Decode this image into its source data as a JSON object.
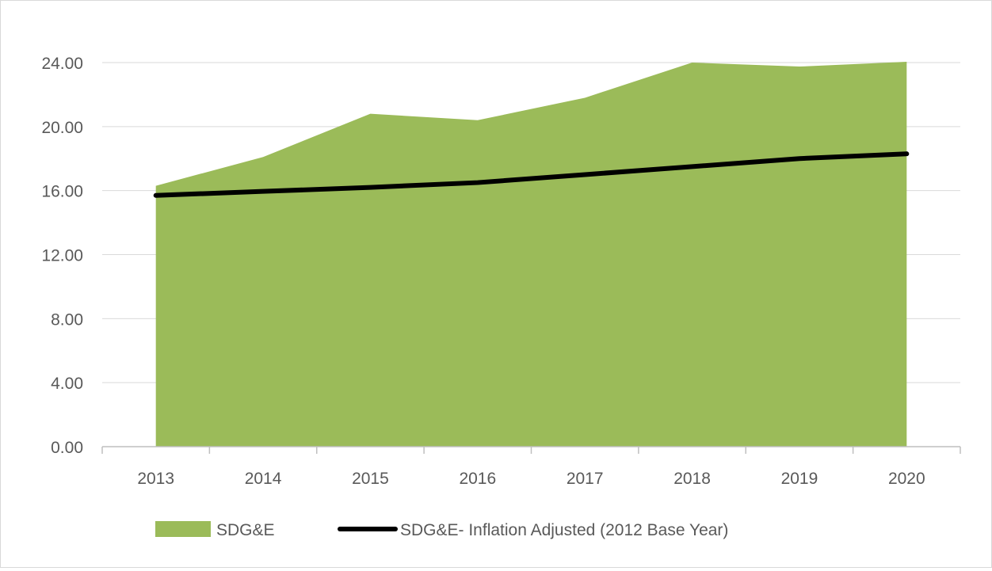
{
  "chart_data": {
    "type": "area",
    "title": "",
    "xlabel": "",
    "ylabel": "",
    "categories": [
      "2013",
      "2014",
      "2015",
      "2016",
      "2017",
      "2018",
      "2019",
      "2020"
    ],
    "ylim": [
      0,
      24
    ],
    "yticks": [
      "0.00",
      "4.00",
      "8.00",
      "12.00",
      "16.00",
      "20.00",
      "24.00"
    ],
    "grid": true,
    "legend_position": "bottom",
    "series": [
      {
        "name": "SDG&E",
        "type": "area",
        "color": "#9bbb59",
        "values": [
          16.3,
          18.1,
          20.8,
          20.4,
          21.8,
          24.0,
          23.75,
          24.05
        ]
      },
      {
        "name": "SDG&E- Inflation Adjusted (2012 Base Year)",
        "type": "line",
        "color": "#000000",
        "values": [
          15.7,
          15.95,
          16.2,
          16.5,
          17.0,
          17.5,
          18.0,
          18.3
        ]
      }
    ]
  }
}
